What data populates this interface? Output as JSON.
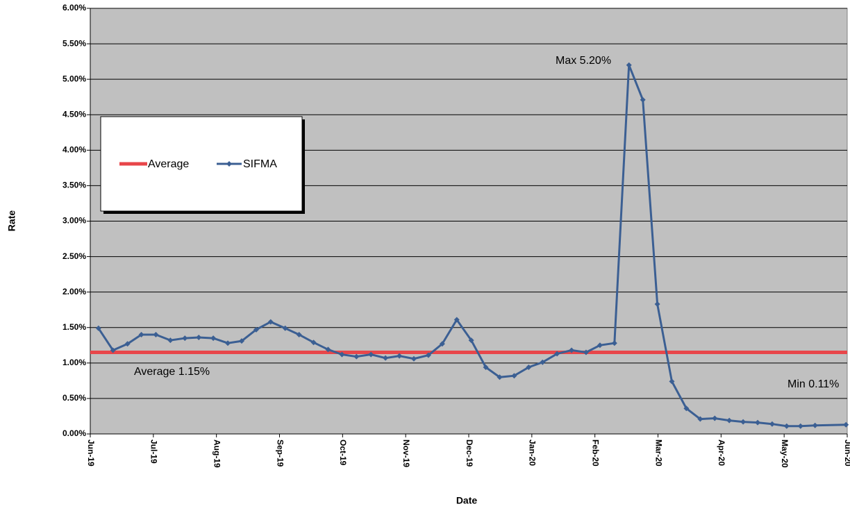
{
  "chart_data": {
    "type": "line",
    "x_label": "Date",
    "y_label": "Rate",
    "xlim": [
      0,
      12
    ],
    "xticks": [
      {
        "value": 0,
        "label": "Jun-19"
      },
      {
        "value": 1,
        "label": "Jul-19"
      },
      {
        "value": 2,
        "label": "Aug-19"
      },
      {
        "value": 3,
        "label": "Sep-19"
      },
      {
        "value": 4,
        "label": "Oct-19"
      },
      {
        "value": 5,
        "label": "Nov-19"
      },
      {
        "value": 6,
        "label": "Dec-19"
      },
      {
        "value": 7,
        "label": "Jan-20"
      },
      {
        "value": 8,
        "label": "Feb-20"
      },
      {
        "value": 9,
        "label": "Mar-20"
      },
      {
        "value": 10,
        "label": "Apr-20"
      },
      {
        "value": 11,
        "label": "May-20"
      },
      {
        "value": 12,
        "label": "Jun-20"
      }
    ],
    "ylim": [
      0,
      6
    ],
    "yticks": [
      {
        "value": 0,
        "label": "0.00%"
      },
      {
        "value": 0.5,
        "label": "0.50%"
      },
      {
        "value": 1,
        "label": "1.00%"
      },
      {
        "value": 1.5,
        "label": "1.50%"
      },
      {
        "value": 2,
        "label": "2.00%"
      },
      {
        "value": 2.5,
        "label": "2.50%"
      },
      {
        "value": 3,
        "label": "3.00%"
      },
      {
        "value": 3.5,
        "label": "3.50%"
      },
      {
        "value": 4,
        "label": "4.00%"
      },
      {
        "value": 4.5,
        "label": "4.50%"
      },
      {
        "value": 5,
        "label": "5.00%"
      },
      {
        "value": 5.5,
        "label": "5.50%"
      },
      {
        "value": 6,
        "label": "6.00%"
      }
    ],
    "grid": true,
    "plot_background": "#c0c0c0",
    "legend_position": "upper-left",
    "reference_lines": [
      {
        "name": "Average",
        "color": "#e8464a",
        "value": 1.15
      }
    ],
    "x": [
      0.13,
      0.36,
      0.59,
      0.81,
      1.04,
      1.27,
      1.5,
      1.72,
      1.95,
      2.18,
      2.4,
      2.63,
      2.86,
      3.09,
      3.31,
      3.54,
      3.77,
      3.99,
      4.22,
      4.45,
      4.68,
      4.9,
      5.13,
      5.36,
      5.58,
      5.81,
      6.04,
      6.27,
      6.49,
      6.72,
      6.95,
      7.17,
      7.4,
      7.63,
      7.86,
      8.08,
      8.31,
      8.54,
      8.76,
      8.99,
      9.22,
      9.45,
      9.67,
      9.9,
      10.13,
      10.35,
      10.58,
      10.81,
      11.04,
      11.26,
      11.49,
      11.98
    ],
    "series": [
      {
        "name": "SIFMA",
        "color": "#3b5f93",
        "values": [
          1.49,
          1.18,
          1.27,
          1.4,
          1.4,
          1.32,
          1.35,
          1.36,
          1.35,
          1.28,
          1.31,
          1.47,
          1.58,
          1.49,
          1.4,
          1.29,
          1.19,
          1.12,
          1.09,
          1.12,
          1.07,
          1.1,
          1.06,
          1.11,
          1.27,
          1.61,
          1.32,
          0.94,
          0.8,
          0.82,
          0.94,
          1.01,
          1.13,
          1.18,
          1.15,
          1.25,
          1.28,
          5.2,
          4.71,
          1.83,
          0.74,
          0.36,
          0.21,
          0.22,
          0.19,
          0.17,
          0.16,
          0.14,
          0.11,
          0.11,
          0.12,
          0.13
        ]
      }
    ],
    "annotations": [
      "Max 5.20%",
      "Average 1.15%",
      "Min 0.11%"
    ]
  }
}
